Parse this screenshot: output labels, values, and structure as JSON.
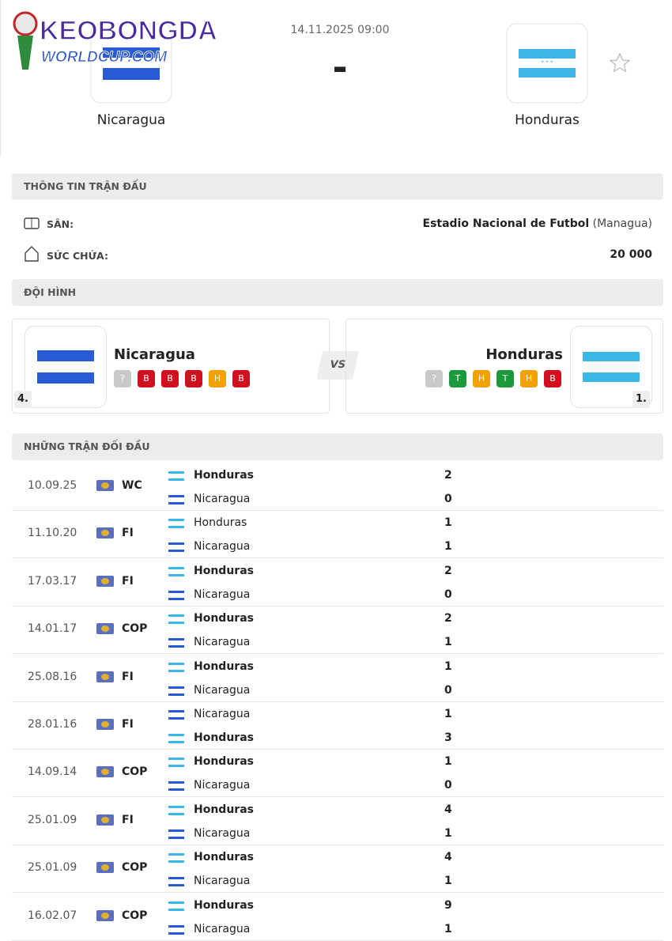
{
  "logo": {
    "brand": "KEOBONGDA",
    "site": "WORLDCUP.COM"
  },
  "match": {
    "datetime": "14.11.2025 09:00",
    "score": "-",
    "home": "Nicaragua",
    "away": "Honduras"
  },
  "info": {
    "title": "THÔNG TIN TRẬN ĐẤU",
    "rows": [
      {
        "label": "SÂN:",
        "value": "Estadio Nacional de Futbol",
        "extra": "(Managua)"
      },
      {
        "label": "SỨC CHỨA:",
        "value": "20 000"
      }
    ]
  },
  "lineup": {
    "title": "ĐỘI HÌNH",
    "vs": "VS",
    "home": {
      "name": "Nicaragua",
      "rank": "4.",
      "form": [
        "?",
        "B",
        "B",
        "B",
        "H",
        "B"
      ]
    },
    "away": {
      "name": "Honduras",
      "rank": "1.",
      "form": [
        "?",
        "T",
        "H",
        "T",
        "H",
        "B"
      ]
    }
  },
  "h2h": {
    "title": "NHỮNG TRẬN ĐỐI ĐẦU",
    "matches": [
      {
        "date": "10.09.25",
        "comp": "WC",
        "home": "Honduras",
        "home_score": 2,
        "away": "Nicaragua",
        "away_score": 0
      },
      {
        "date": "11.10.20",
        "comp": "FI",
        "home": "Honduras",
        "home_score": 1,
        "away": "Nicaragua",
        "away_score": 1
      },
      {
        "date": "17.03.17",
        "comp": "FI",
        "home": "Honduras",
        "home_score": 2,
        "away": "Nicaragua",
        "away_score": 0
      },
      {
        "date": "14.01.17",
        "comp": "COP",
        "home": "Honduras",
        "home_score": 2,
        "away": "Nicaragua",
        "away_score": 1
      },
      {
        "date": "25.08.16",
        "comp": "FI",
        "home": "Honduras",
        "home_score": 1,
        "away": "Nicaragua",
        "away_score": 0
      },
      {
        "date": "28.01.16",
        "comp": "FI",
        "home": "Nicaragua",
        "home_score": 1,
        "away": "Honduras",
        "away_score": 3
      },
      {
        "date": "14.09.14",
        "comp": "COP",
        "home": "Honduras",
        "home_score": 1,
        "away": "Nicaragua",
        "away_score": 0
      },
      {
        "date": "25.01.09",
        "comp": "FI",
        "home": "Honduras",
        "home_score": 4,
        "away": "Nicaragua",
        "away_score": 1
      },
      {
        "date": "25.01.09",
        "comp": "COP",
        "home": "Honduras",
        "home_score": 4,
        "away": "Nicaragua",
        "away_score": 1
      },
      {
        "date": "16.02.07",
        "comp": "COP",
        "home": "Honduras",
        "home_score": 9,
        "away": "Nicaragua",
        "away_score": 1
      }
    ]
  }
}
